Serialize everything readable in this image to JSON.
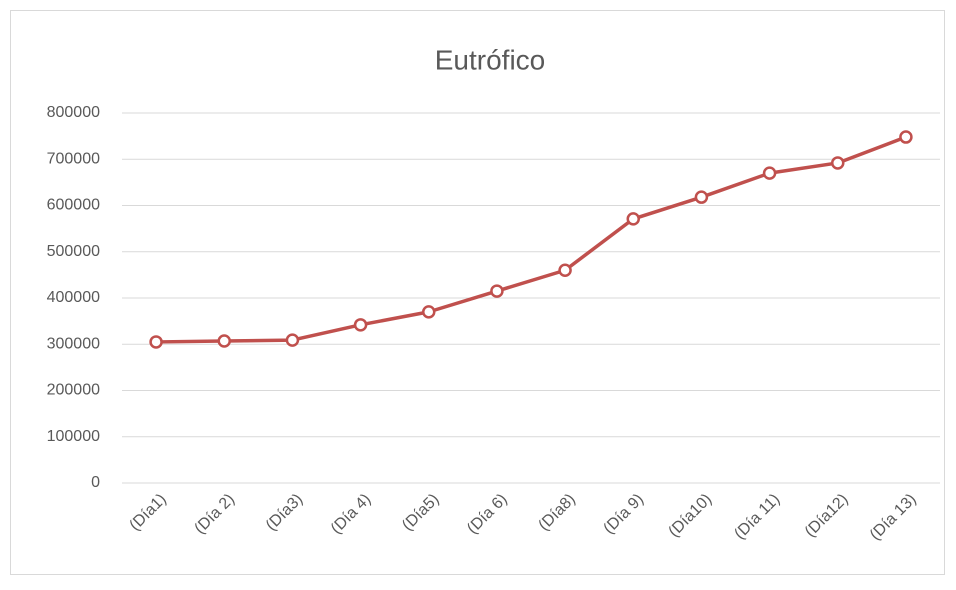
{
  "chart_data": {
    "type": "line",
    "title": "Eutrófico",
    "categories": [
      "(Día1)",
      "(Día 2)",
      "(Día3)",
      "(Día 4)",
      "(Día5)",
      "(Día 6)",
      "(Día8)",
      "(Día 9)",
      "(Día10)",
      "(Día 11)",
      "(Día12)",
      "(Día 13)"
    ],
    "series": [
      {
        "name": "Eutrófico",
        "color": "#c0504d",
        "values": [
          305000,
          307000,
          309000,
          342000,
          370000,
          415000,
          460000,
          571000,
          618000,
          670000,
          692000,
          748000
        ]
      }
    ],
    "ylim": [
      0,
      800000
    ],
    "yticks": [
      0,
      100000,
      200000,
      300000,
      400000,
      500000,
      600000,
      700000,
      800000
    ],
    "grid": true
  }
}
